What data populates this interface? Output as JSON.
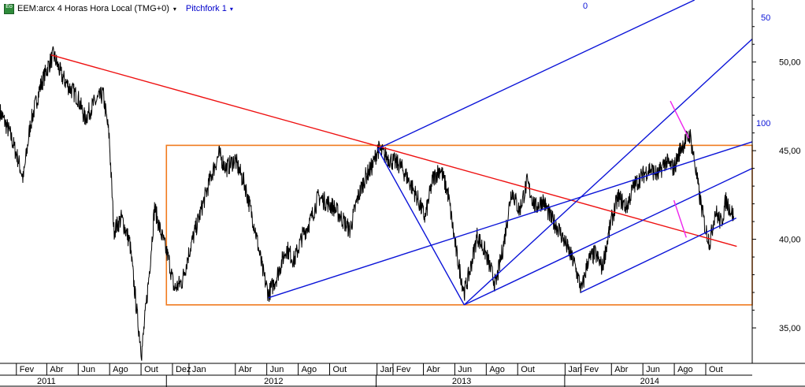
{
  "header": {
    "symbol_text": "EEM:arcx 4 Horas Hora Local (TMG+0)",
    "study_label": "Pitchfork 1",
    "logo_text": "Eo"
  },
  "colors": {
    "price": "#000000",
    "trendline": "#ee1111",
    "pitchfork": "#0b14d8",
    "box": "#f07a1e",
    "magenta": "#ee22ee",
    "axis": "#000000"
  },
  "chart_data": {
    "type": "line",
    "title": "",
    "ylim": [
      33.0,
      53.5
    ],
    "y_ticks": [
      "35,00",
      "40,00",
      "45,00",
      "50,00"
    ],
    "y_tick_values": [
      35,
      40,
      45,
      50
    ],
    "x_range": [
      "2011-01-01",
      "2014-12-31"
    ],
    "x_month_labels": [
      {
        "label": "Fev",
        "date": "2011-02-14"
      },
      {
        "label": "Abr",
        "date": "2011-04-14"
      },
      {
        "label": "Jun",
        "date": "2011-06-14"
      },
      {
        "label": "Ago",
        "date": "2011-08-14"
      },
      {
        "label": "Out",
        "date": "2011-10-14"
      },
      {
        "label": "Dez",
        "date": "2011-12-14"
      },
      {
        "label": "Jan",
        "date": "2012-01-15"
      },
      {
        "label": "Abr",
        "date": "2012-04-14"
      },
      {
        "label": "Jun",
        "date": "2012-06-14"
      },
      {
        "label": "Ago",
        "date": "2012-08-14"
      },
      {
        "label": "Out",
        "date": "2012-10-14"
      },
      {
        "label": "Jan",
        "date": "2013-01-14"
      },
      {
        "label": "Fev",
        "date": "2013-02-14"
      },
      {
        "label": "Abr",
        "date": "2013-04-14"
      },
      {
        "label": "Jun",
        "date": "2013-06-14"
      },
      {
        "label": "Ago",
        "date": "2013-08-14"
      },
      {
        "label": "Out",
        "date": "2013-10-14"
      },
      {
        "label": "Jan",
        "date": "2014-01-14"
      },
      {
        "label": "Fev",
        "date": "2014-02-14"
      },
      {
        "label": "Abr",
        "date": "2014-04-14"
      },
      {
        "label": "Jun",
        "date": "2014-06-14"
      },
      {
        "label": "Ago",
        "date": "2014-08-14"
      },
      {
        "label": "Out",
        "date": "2014-10-14"
      }
    ],
    "x_years": [
      {
        "label": "2011",
        "date": "2011-04-01"
      },
      {
        "label": "2012",
        "date": "2012-06-15"
      },
      {
        "label": "2013",
        "date": "2013-06-15"
      },
      {
        "label": "2014",
        "date": "2014-06-15"
      }
    ],
    "year_dividers": [
      "2011-11-20",
      "2012-12-31",
      "2014-01-01"
    ],
    "series": [
      {
        "values": [
          [
            "2011-01-01",
            47.2
          ],
          [
            "2011-01-20",
            46.0
          ],
          [
            "2011-02-05",
            44.5
          ],
          [
            "2011-02-15",
            43.4
          ],
          [
            "2011-03-01",
            46.5
          ],
          [
            "2011-03-20",
            48.6
          ],
          [
            "2011-04-05",
            49.8
          ],
          [
            "2011-04-15",
            50.4
          ],
          [
            "2011-05-01",
            49.2
          ],
          [
            "2011-05-15",
            48.6
          ],
          [
            "2011-06-01",
            48.0
          ],
          [
            "2011-06-15",
            46.8
          ],
          [
            "2011-07-01",
            47.6
          ],
          [
            "2011-07-20",
            48.2
          ],
          [
            "2011-08-01",
            45.8
          ],
          [
            "2011-08-10",
            40.5
          ],
          [
            "2011-08-25",
            41.2
          ],
          [
            "2011-09-10",
            39.8
          ],
          [
            "2011-09-25",
            35.5
          ],
          [
            "2011-10-03",
            33.6
          ],
          [
            "2011-10-18",
            38.2
          ],
          [
            "2011-10-28",
            41.8
          ],
          [
            "2011-11-08",
            40.5
          ],
          [
            "2011-11-25",
            38.8
          ],
          [
            "2011-12-05",
            37.2
          ],
          [
            "2011-12-20",
            37.6
          ],
          [
            "2012-01-05",
            39.5
          ],
          [
            "2012-01-25",
            41.5
          ],
          [
            "2012-02-15",
            43.6
          ],
          [
            "2012-03-01",
            44.8
          ],
          [
            "2012-03-15",
            44.0
          ],
          [
            "2012-04-01",
            44.5
          ],
          [
            "2012-04-20",
            43.1
          ],
          [
            "2012-05-10",
            40.6
          ],
          [
            "2012-05-25",
            38.2
          ],
          [
            "2012-06-05",
            36.9
          ],
          [
            "2012-06-20",
            37.8
          ],
          [
            "2012-07-10",
            39.5
          ],
          [
            "2012-07-25",
            38.8
          ],
          [
            "2012-08-10",
            40.2
          ],
          [
            "2012-08-25",
            41.0
          ],
          [
            "2012-09-10",
            42.4
          ],
          [
            "2012-09-25",
            42.1
          ],
          [
            "2012-10-10",
            41.8
          ],
          [
            "2012-10-25",
            41.2
          ],
          [
            "2012-11-10",
            40.5
          ],
          [
            "2012-11-25",
            42.3
          ],
          [
            "2012-12-10",
            43.5
          ],
          [
            "2012-12-25",
            44.2
          ],
          [
            "2013-01-03",
            45.1
          ],
          [
            "2013-01-15",
            44.8
          ],
          [
            "2013-02-01",
            44.4
          ],
          [
            "2013-02-15",
            44.2
          ],
          [
            "2013-03-01",
            43.5
          ],
          [
            "2013-03-20",
            42.4
          ],
          [
            "2013-04-05",
            41.2
          ],
          [
            "2013-04-20",
            43.4
          ],
          [
            "2013-05-05",
            44.0
          ],
          [
            "2013-05-20",
            42.5
          ],
          [
            "2013-06-05",
            39.2
          ],
          [
            "2013-06-20",
            37.0
          ],
          [
            "2013-07-01",
            38.2
          ],
          [
            "2013-07-15",
            40.2
          ],
          [
            "2013-08-01",
            39.2
          ],
          [
            "2013-08-20",
            37.4
          ],
          [
            "2013-09-05",
            39.8
          ],
          [
            "2013-09-20",
            42.8
          ],
          [
            "2013-10-05",
            41.6
          ],
          [
            "2013-10-20",
            43.2
          ],
          [
            "2013-11-05",
            41.8
          ],
          [
            "2013-11-20",
            42.2
          ],
          [
            "2013-12-05",
            41.2
          ],
          [
            "2013-12-20",
            40.6
          ],
          [
            "2014-01-05",
            39.6
          ],
          [
            "2014-01-20",
            38.6
          ],
          [
            "2014-02-03",
            37.1
          ],
          [
            "2014-02-15",
            38.8
          ],
          [
            "2014-03-01",
            39.2
          ],
          [
            "2014-03-15",
            38.4
          ],
          [
            "2014-04-01",
            41.0
          ],
          [
            "2014-04-15",
            42.4
          ],
          [
            "2014-05-01",
            41.8
          ],
          [
            "2014-05-15",
            43.0
          ],
          [
            "2014-06-01",
            43.6
          ],
          [
            "2014-06-15",
            44.0
          ],
          [
            "2014-07-01",
            43.6
          ],
          [
            "2014-07-15",
            44.4
          ],
          [
            "2014-08-01",
            44.0
          ],
          [
            "2014-08-15",
            45.2
          ],
          [
            "2014-09-01",
            45.9
          ],
          [
            "2014-09-10",
            44.4
          ],
          [
            "2014-09-20",
            42.4
          ],
          [
            "2014-10-01",
            40.6
          ],
          [
            "2014-10-10",
            39.8
          ],
          [
            "2014-10-20",
            41.6
          ],
          [
            "2014-11-01",
            40.9
          ],
          [
            "2014-11-10",
            42.2
          ],
          [
            "2014-11-25",
            41.3
          ]
        ]
      }
    ],
    "range_box": {
      "x0": "2011-11-20",
      "x1": "2014-12-31",
      "y0": 36.3,
      "y1": 45.3
    },
    "trendline": [
      [
        "2011-04-10",
        50.4
      ],
      [
        "2014-12-01",
        39.6
      ]
    ],
    "pitchfork": {
      "levels": [
        "0",
        "50",
        "100"
      ],
      "handle": [
        [
          "2013-01-03",
          45.1
        ],
        [
          "2013-06-20",
          36.3
        ]
      ],
      "lines_0": [
        [
          "2013-01-03",
          45.1
        ],
        [
          "2014-09-10",
          53.5
        ]
      ],
      "lines_50": [
        [
          "2013-06-20",
          36.3
        ],
        [
          "2014-12-31",
          51.3
        ]
      ],
      "lines_100": [
        [
          "2012-06-05",
          36.7
        ],
        [
          "2014-12-31",
          45.5
        ]
      ],
      "mid_lower": [
        [
          "2013-06-20",
          36.3
        ],
        [
          "2014-12-31",
          44.0
        ]
      ],
      "lower": [
        [
          "2014-02-01",
          37.0
        ],
        [
          "2014-11-30",
          41.2
        ]
      ]
    },
    "magenta_lines": [
      [
        [
          "2014-07-25",
          47.8
        ],
        [
          "2014-08-30",
          45.7
        ]
      ],
      [
        [
          "2014-08-01",
          42.2
        ],
        [
          "2014-08-25",
          40.1
        ]
      ]
    ]
  }
}
